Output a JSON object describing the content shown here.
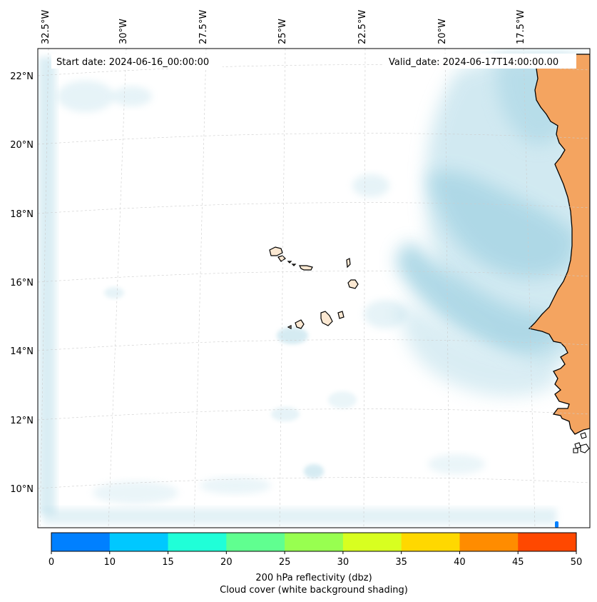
{
  "header": {
    "start_date": "Start date: 2024-06-16_00:00:00",
    "valid_date": "Valid_date: 2024-06-17T14:00:00.00"
  },
  "map": {
    "lon_labels": [
      "32.5°W",
      "30°W",
      "27.5°W",
      "25°W",
      "22.5°W",
      "20°W",
      "17.5°W"
    ],
    "lat_labels": [
      "22°N",
      "20°N",
      "18°N",
      "16°N",
      "14°N",
      "12°N",
      "10°N"
    ],
    "colors": {
      "cloud": "#add8e6",
      "land": "#f4a460",
      "coast": "#000000",
      "grid": "#cccccc"
    }
  },
  "colorbar": {
    "ticks": [
      "0",
      "10",
      "15",
      "20",
      "25",
      "30",
      "35",
      "40",
      "45",
      "50"
    ],
    "colors": [
      "#0080ff",
      "#00c8ff",
      "#20ffd8",
      "#60ff90",
      "#98ff50",
      "#d8ff20",
      "#ffd800",
      "#ff8c00",
      "#ff4800"
    ],
    "label_line1": "200 hPa reflectivity (dbz)",
    "label_line2": "Cloud cover (white background shading)"
  }
}
